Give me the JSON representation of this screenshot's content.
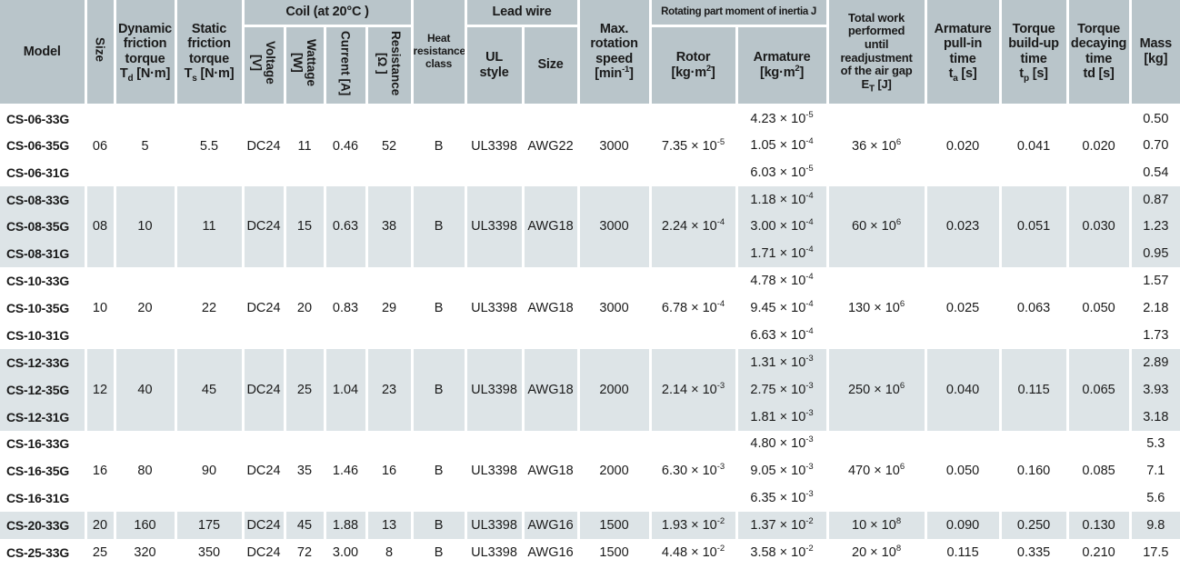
{
  "colors": {
    "header_bg": "#b9c5ca",
    "row_shaded_bg": "#dde4e7",
    "text": "#1a1a1a"
  },
  "header": {
    "model": "Model",
    "size": "Size",
    "dynamic_torque": "Dynamic\nfriction\ntorque\nT_d [N·m]",
    "static_torque": "Static\nfriction\ntorque\nT_s [N·m]",
    "coil_group": "Coil (at 20°C )",
    "voltage": "Voltage\n[V]",
    "wattage": "Wattage\n[W]",
    "current": "Current [A]",
    "resistance": "Resistance\n[Ω ]",
    "heat_class": "Heat\nresistance\nclass",
    "lead_wire_group": "Lead wire",
    "ul_style": "UL\nstyle",
    "wire_size": "Size",
    "max_speed": "Max.\nrotation\nspeed\n[min^-1]",
    "inertia_group": "Rotating part moment of inertia J",
    "rotor": "Rotor\n[kg·m^2]",
    "armature": "Armature\n[kg·m^2]",
    "total_work": "Total work\nperformed\nuntil\nreadjustment\nof the air gap\nE_T [J]",
    "pull_in_time": "Armature\npull-in\ntime\nt_a [s]",
    "build_up_time": "Torque\nbuild-up\ntime\nt_p [s]",
    "decay_time": "Torque\ndecaying\ntime\ntd [s]",
    "mass": "Mass\n[kg]"
  },
  "groups": [
    {
      "shaded": false,
      "shared": {
        "size": "06",
        "dynamic_torque": "5",
        "static_torque": "5.5",
        "voltage": "DC24",
        "wattage": "11",
        "current": "0.46",
        "resistance": "52",
        "heat_class": "B",
        "ul_style": "UL3398",
        "wire_size": "AWG22",
        "max_speed": "3000",
        "rotor": "7.35 × 10^-5",
        "total_work": "36 × 10^6",
        "pull_in": "0.020",
        "build_up": "0.041",
        "decay": "0.020"
      },
      "rows": [
        {
          "model": "CS-06-33G",
          "armature": "4.23 × 10^-5",
          "mass": "0.50"
        },
        {
          "model": "CS-06-35G",
          "armature": "1.05 × 10^-4",
          "mass": "0.70"
        },
        {
          "model": "CS-06-31G",
          "armature": "6.03 × 10^-5",
          "mass": "0.54"
        }
      ]
    },
    {
      "shaded": true,
      "shared": {
        "size": "08",
        "dynamic_torque": "10",
        "static_torque": "11",
        "voltage": "DC24",
        "wattage": "15",
        "current": "0.63",
        "resistance": "38",
        "heat_class": "B",
        "ul_style": "UL3398",
        "wire_size": "AWG18",
        "max_speed": "3000",
        "rotor": "2.24 × 10^-4",
        "total_work": "60 × 10^6",
        "pull_in": "0.023",
        "build_up": "0.051",
        "decay": "0.030"
      },
      "rows": [
        {
          "model": "CS-08-33G",
          "armature": "1.18 × 10^-4",
          "mass": "0.87"
        },
        {
          "model": "CS-08-35G",
          "armature": "3.00 × 10^-4",
          "mass": "1.23"
        },
        {
          "model": "CS-08-31G",
          "armature": "1.71 × 10^-4",
          "mass": "0.95"
        }
      ]
    },
    {
      "shaded": false,
      "shared": {
        "size": "10",
        "dynamic_torque": "20",
        "static_torque": "22",
        "voltage": "DC24",
        "wattage": "20",
        "current": "0.83",
        "resistance": "29",
        "heat_class": "B",
        "ul_style": "UL3398",
        "wire_size": "AWG18",
        "max_speed": "3000",
        "rotor": "6.78 × 10^-4",
        "total_work": "130 × 10^6",
        "pull_in": "0.025",
        "build_up": "0.063",
        "decay": "0.050"
      },
      "rows": [
        {
          "model": "CS-10-33G",
          "armature": "4.78 × 10^-4",
          "mass": "1.57"
        },
        {
          "model": "CS-10-35G",
          "armature": "9.45 × 10^-4",
          "mass": "2.18"
        },
        {
          "model": "CS-10-31G",
          "armature": "6.63 × 10^-4",
          "mass": "1.73"
        }
      ]
    },
    {
      "shaded": true,
      "shared": {
        "size": "12",
        "dynamic_torque": "40",
        "static_torque": "45",
        "voltage": "DC24",
        "wattage": "25",
        "current": "1.04",
        "resistance": "23",
        "heat_class": "B",
        "ul_style": "UL3398",
        "wire_size": "AWG18",
        "max_speed": "2000",
        "rotor": "2.14 × 10^-3",
        "total_work": "250 × 10^6",
        "pull_in": "0.040",
        "build_up": "0.115",
        "decay": "0.065"
      },
      "rows": [
        {
          "model": "CS-12-33G",
          "armature": "1.31 × 10^-3",
          "mass": "2.89"
        },
        {
          "model": "CS-12-35G",
          "armature": "2.75 × 10^-3",
          "mass": "3.93"
        },
        {
          "model": "CS-12-31G",
          "armature": "1.81 × 10^-3",
          "mass": "3.18"
        }
      ]
    },
    {
      "shaded": false,
      "shared": {
        "size": "16",
        "dynamic_torque": "80",
        "static_torque": "90",
        "voltage": "DC24",
        "wattage": "35",
        "current": "1.46",
        "resistance": "16",
        "heat_class": "B",
        "ul_style": "UL3398",
        "wire_size": "AWG18",
        "max_speed": "2000",
        "rotor": "6.30 × 10^-3",
        "total_work": "470 × 10^6",
        "pull_in": "0.050",
        "build_up": "0.160",
        "decay": "0.085"
      },
      "rows": [
        {
          "model": "CS-16-33G",
          "armature": "4.80 × 10^-3",
          "mass": "5.3"
        },
        {
          "model": "CS-16-35G",
          "armature": "9.05 × 10^-3",
          "mass": "7.1"
        },
        {
          "model": "CS-16-31G",
          "armature": "6.35 × 10^-3",
          "mass": "5.6"
        }
      ]
    },
    {
      "shaded": true,
      "shared": {
        "size": "20",
        "dynamic_torque": "160",
        "static_torque": "175",
        "voltage": "DC24",
        "wattage": "45",
        "current": "1.88",
        "resistance": "13",
        "heat_class": "B",
        "ul_style": "UL3398",
        "wire_size": "AWG16",
        "max_speed": "1500",
        "rotor": "1.93 × 10^-2",
        "total_work": "10 × 10^8",
        "pull_in": "0.090",
        "build_up": "0.250",
        "decay": "0.130"
      },
      "rows": [
        {
          "model": "CS-20-33G",
          "armature": "1.37 × 10^-2",
          "mass": "9.8"
        }
      ]
    },
    {
      "shaded": false,
      "shared": {
        "size": "25",
        "dynamic_torque": "320",
        "static_torque": "350",
        "voltage": "DC24",
        "wattage": "72",
        "current": "3.00",
        "resistance": "8",
        "heat_class": "B",
        "ul_style": "UL3398",
        "wire_size": "AWG16",
        "max_speed": "1500",
        "rotor": "4.48 × 10^-2",
        "total_work": "20 × 10^8",
        "pull_in": "0.115",
        "build_up": "0.335",
        "decay": "0.210"
      },
      "rows": [
        {
          "model": "CS-25-33G",
          "armature": "3.58 × 10^-2",
          "mass": "17.5"
        }
      ]
    }
  ]
}
